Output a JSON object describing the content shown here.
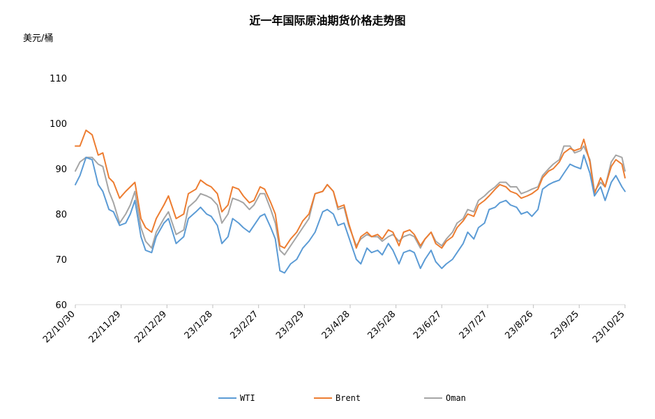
{
  "chart_data": {
    "type": "line",
    "title": "近一年国际原油期货价格走势图",
    "unit_label": "美元/桶",
    "ylim": [
      60,
      110
    ],
    "y_ticks": [
      "60",
      "70",
      "80",
      "90",
      "100",
      "110"
    ],
    "x_ticks": [
      "22/10/30",
      "22/11/29",
      "22/12/29",
      "23/1/28",
      "23/2/27",
      "23/3/29",
      "23/4/28",
      "23/5/28",
      "23/6/27",
      "23/7/27",
      "23/8/26",
      "23/9/25",
      "23/10/25"
    ],
    "x_range": [
      "2022-10-30",
      "2023-10-25"
    ],
    "grid": false,
    "legend_position": "bottom",
    "series": [
      {
        "name": "WTI",
        "color": "#5b9bd5",
        "x": [
          "2022-10-30",
          "2022-11-02",
          "2022-11-06",
          "2022-11-10",
          "2022-11-14",
          "2022-11-17",
          "2022-11-21",
          "2022-11-24",
          "2022-11-28",
          "2022-12-02",
          "2022-12-05",
          "2022-12-08",
          "2022-12-12",
          "2022-12-15",
          "2022-12-19",
          "2022-12-22",
          "2022-12-27",
          "2022-12-30",
          "2023-01-04",
          "2023-01-09",
          "2023-01-12",
          "2023-01-17",
          "2023-01-20",
          "2023-01-24",
          "2023-01-27",
          "2023-01-31",
          "2023-02-03",
          "2023-02-07",
          "2023-02-10",
          "2023-02-14",
          "2023-02-17",
          "2023-02-21",
          "2023-02-24",
          "2023-02-28",
          "2023-03-03",
          "2023-03-07",
          "2023-03-10",
          "2023-03-13",
          "2023-03-16",
          "2023-03-20",
          "2023-03-24",
          "2023-03-28",
          "2023-04-01",
          "2023-04-05",
          "2023-04-10",
          "2023-04-13",
          "2023-04-17",
          "2023-04-20",
          "2023-04-24",
          "2023-04-27",
          "2023-05-02",
          "2023-05-05",
          "2023-05-09",
          "2023-05-12",
          "2023-05-16",
          "2023-05-19",
          "2023-05-23",
          "2023-05-26",
          "2023-05-30",
          "2023-06-02",
          "2023-06-06",
          "2023-06-09",
          "2023-06-13",
          "2023-06-16",
          "2023-06-20",
          "2023-06-23",
          "2023-06-27",
          "2023-06-30",
          "2023-07-04",
          "2023-07-07",
          "2023-07-11",
          "2023-07-14",
          "2023-07-18",
          "2023-07-21",
          "2023-07-25",
          "2023-07-28",
          "2023-08-01",
          "2023-08-04",
          "2023-08-08",
          "2023-08-11",
          "2023-08-15",
          "2023-08-18",
          "2023-08-22",
          "2023-08-25",
          "2023-08-29",
          "2023-09-01",
          "2023-09-05",
          "2023-09-08",
          "2023-09-12",
          "2023-09-15",
          "2023-09-19",
          "2023-09-22",
          "2023-09-26",
          "2023-09-28",
          "2023-10-02",
          "2023-10-05",
          "2023-10-09",
          "2023-10-12",
          "2023-10-16",
          "2023-10-19",
          "2023-10-23",
          "2023-10-25"
        ],
        "values": [
          86.5,
          88.5,
          92.5,
          92,
          86.5,
          85,
          81,
          80.5,
          77.5,
          78,
          80,
          83,
          75,
          72,
          71.5,
          75,
          78,
          79,
          73.5,
          75,
          79,
          80.5,
          81.5,
          80,
          79.5,
          77.5,
          73.5,
          75,
          79,
          78,
          77,
          76,
          77.5,
          79.5,
          80,
          77,
          74.5,
          67.5,
          67,
          69,
          70,
          72.5,
          74,
          76,
          80.5,
          81,
          80,
          77.5,
          78,
          75,
          70,
          69,
          72.5,
          71.5,
          72,
          71,
          73.5,
          72,
          69,
          71.5,
          72,
          71.5,
          68,
          70,
          72,
          69.5,
          68,
          69,
          70,
          71.5,
          73.5,
          76,
          74.5,
          77,
          78,
          81,
          81.5,
          82.5,
          83,
          82,
          81.5,
          80,
          80.5,
          79.5,
          81,
          85.5,
          86.5,
          87,
          87.5,
          89,
          91,
          90.5,
          90,
          93,
          89,
          84,
          86,
          83,
          87,
          88.5,
          86,
          85
        ]
      },
      {
        "name": "Brent",
        "color": "#ed7d31",
        "x": [
          "2022-10-30",
          "2022-11-02",
          "2022-11-06",
          "2022-11-10",
          "2022-11-14",
          "2022-11-17",
          "2022-11-21",
          "2022-11-24",
          "2022-11-28",
          "2022-12-02",
          "2022-12-05",
          "2022-12-08",
          "2022-12-12",
          "2022-12-15",
          "2022-12-19",
          "2022-12-22",
          "2022-12-27",
          "2022-12-30",
          "2023-01-04",
          "2023-01-09",
          "2023-01-12",
          "2023-01-17",
          "2023-01-20",
          "2023-01-24",
          "2023-01-27",
          "2023-01-31",
          "2023-02-03",
          "2023-02-07",
          "2023-02-10",
          "2023-02-14",
          "2023-02-17",
          "2023-02-21",
          "2023-02-24",
          "2023-02-28",
          "2023-03-03",
          "2023-03-07",
          "2023-03-10",
          "2023-03-13",
          "2023-03-16",
          "2023-03-20",
          "2023-03-24",
          "2023-03-28",
          "2023-04-01",
          "2023-04-05",
          "2023-04-10",
          "2023-04-13",
          "2023-04-17",
          "2023-04-20",
          "2023-04-24",
          "2023-04-27",
          "2023-05-02",
          "2023-05-05",
          "2023-05-09",
          "2023-05-12",
          "2023-05-16",
          "2023-05-19",
          "2023-05-23",
          "2023-05-26",
          "2023-05-30",
          "2023-06-02",
          "2023-06-06",
          "2023-06-09",
          "2023-06-13",
          "2023-06-16",
          "2023-06-20",
          "2023-06-23",
          "2023-06-27",
          "2023-06-30",
          "2023-07-04",
          "2023-07-07",
          "2023-07-11",
          "2023-07-14",
          "2023-07-18",
          "2023-07-21",
          "2023-07-25",
          "2023-07-28",
          "2023-08-01",
          "2023-08-04",
          "2023-08-08",
          "2023-08-11",
          "2023-08-15",
          "2023-08-18",
          "2023-08-22",
          "2023-08-25",
          "2023-08-29",
          "2023-09-01",
          "2023-09-05",
          "2023-09-08",
          "2023-09-12",
          "2023-09-15",
          "2023-09-19",
          "2023-09-22",
          "2023-09-26",
          "2023-09-28",
          "2023-10-02",
          "2023-10-05",
          "2023-10-09",
          "2023-10-12",
          "2023-10-16",
          "2023-10-19",
          "2023-10-23",
          "2023-10-25"
        ],
        "values": [
          95,
          95,
          98.5,
          97.5,
          93,
          93.5,
          88,
          87,
          83.5,
          85,
          86,
          87,
          79,
          77,
          76,
          79,
          82,
          84,
          79,
          80,
          84.5,
          85.5,
          87.5,
          86.5,
          86,
          84.5,
          80.5,
          82,
          86,
          85.5,
          84,
          82.5,
          83,
          86,
          85.5,
          82.5,
          80,
          73,
          72.5,
          74.5,
          76,
          78.5,
          80,
          84.5,
          85,
          86.5,
          85,
          81.5,
          82,
          78,
          72.5,
          75,
          76,
          75,
          75.5,
          74.5,
          76.5,
          76,
          73,
          76,
          76.5,
          75.5,
          73,
          74.5,
          76,
          73.5,
          72.5,
          74,
          75,
          77,
          78.5,
          80,
          79.5,
          82,
          83,
          84,
          85.5,
          86.5,
          86,
          85,
          84.5,
          83.5,
          84,
          84.5,
          85.5,
          88,
          89.5,
          90,
          91.5,
          93.5,
          94.5,
          94,
          94.5,
          96.5,
          91.5,
          84.5,
          88,
          86,
          90.5,
          92,
          91,
          88
        ]
      },
      {
        "name": "Oman",
        "color": "#a5a5a5",
        "x": [
          "2022-10-30",
          "2022-11-02",
          "2022-11-06",
          "2022-11-10",
          "2022-11-14",
          "2022-11-17",
          "2022-11-21",
          "2022-11-24",
          "2022-11-28",
          "2022-12-02",
          "2022-12-05",
          "2022-12-08",
          "2022-12-12",
          "2022-12-15",
          "2022-12-19",
          "2022-12-22",
          "2022-12-27",
          "2022-12-30",
          "2023-01-04",
          "2023-01-09",
          "2023-01-12",
          "2023-01-17",
          "2023-01-20",
          "2023-01-24",
          "2023-01-27",
          "2023-01-31",
          "2023-02-03",
          "2023-02-07",
          "2023-02-10",
          "2023-02-14",
          "2023-02-17",
          "2023-02-21",
          "2023-02-24",
          "2023-02-28",
          "2023-03-03",
          "2023-03-07",
          "2023-03-10",
          "2023-03-13",
          "2023-03-16",
          "2023-03-20",
          "2023-03-24",
          "2023-03-28",
          "2023-04-01",
          "2023-04-05",
          "2023-04-10",
          "2023-04-13",
          "2023-04-17",
          "2023-04-20",
          "2023-04-24",
          "2023-04-27",
          "2023-05-02",
          "2023-05-05",
          "2023-05-09",
          "2023-05-12",
          "2023-05-16",
          "2023-05-19",
          "2023-05-23",
          "2023-05-26",
          "2023-05-30",
          "2023-06-02",
          "2023-06-06",
          "2023-06-09",
          "2023-06-13",
          "2023-06-16",
          "2023-06-20",
          "2023-06-23",
          "2023-06-27",
          "2023-06-30",
          "2023-07-04",
          "2023-07-07",
          "2023-07-11",
          "2023-07-14",
          "2023-07-18",
          "2023-07-21",
          "2023-07-25",
          "2023-07-28",
          "2023-08-01",
          "2023-08-04",
          "2023-08-08",
          "2023-08-11",
          "2023-08-15",
          "2023-08-18",
          "2023-08-22",
          "2023-08-25",
          "2023-08-29",
          "2023-09-01",
          "2023-09-05",
          "2023-09-08",
          "2023-09-12",
          "2023-09-15",
          "2023-09-19",
          "2023-09-22",
          "2023-09-26",
          "2023-09-28",
          "2023-10-02",
          "2023-10-05",
          "2023-10-09",
          "2023-10-12",
          "2023-10-16",
          "2023-10-19",
          "2023-10-23",
          "2023-10-25"
        ],
        "values": [
          89.5,
          91.5,
          92.5,
          92.5,
          91,
          90.5,
          85,
          82.5,
          78,
          80,
          82,
          85,
          77,
          74,
          72.5,
          76,
          79,
          80.5,
          75.5,
          76.5,
          81.5,
          83,
          84.5,
          84,
          83.5,
          82,
          78,
          80,
          83.5,
          83,
          82.5,
          81,
          82,
          84.5,
          84.5,
          81,
          78,
          72,
          71,
          73,
          75,
          77,
          79,
          84.5,
          85,
          86.5,
          85,
          81,
          81.5,
          77.5,
          73,
          74.5,
          75.5,
          75,
          75,
          74,
          75,
          75.5,
          74,
          75,
          75.5,
          75,
          72.5,
          74.5,
          76,
          74,
          73,
          74.5,
          76,
          78,
          79,
          81,
          80.5,
          83,
          84,
          85,
          86,
          87,
          87,
          86,
          86,
          84.5,
          85,
          85.5,
          86,
          88.5,
          90,
          91,
          92,
          95,
          95,
          93.5,
          94,
          95,
          92,
          85,
          87,
          86,
          91.5,
          93,
          92.5,
          89.5
        ]
      }
    ]
  }
}
